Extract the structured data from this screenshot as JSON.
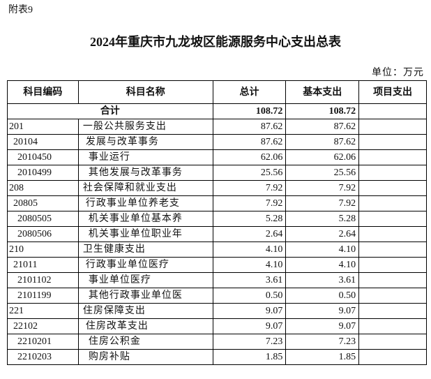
{
  "header": {
    "note": "附表9",
    "title": "2024年重庆市九龙坡区能源服务中心支出总表",
    "unit": "单位：万元"
  },
  "table": {
    "columns": [
      "科目编码",
      "科目名称",
      "总计",
      "基本支出",
      "项目支出"
    ],
    "total": {
      "label": "合计",
      "values": [
        "108.72",
        "108.72"
      ]
    },
    "rows": [
      [
        "201",
        "一般公共服务支出",
        "87.62",
        "87.62"
      ],
      [
        "20104",
        "发展与改革事务",
        "87.62",
        "87.62"
      ],
      [
        "2010450",
        "事业运行",
        "62.06",
        "62.06"
      ],
      [
        "2010499",
        "其他发展与改革事务",
        "25.56",
        "25.56"
      ],
      [
        "208",
        "社会保障和就业支出",
        "7.92",
        "7.92"
      ],
      [
        "20805",
        "行政事业单位养老支",
        "7.92",
        "7.92"
      ],
      [
        "2080505",
        "机关事业单位基本养",
        "5.28",
        "5.28"
      ],
      [
        "2080506",
        "机关事业单位职业年",
        "2.64",
        "2.64"
      ],
      [
        "210",
        "卫生健康支出",
        "4.10",
        "4.10"
      ],
      [
        "21011",
        "行政事业单位医疗",
        "4.10",
        "4.10"
      ],
      [
        "2101102",
        "事业单位医疗",
        "3.61",
        "3.61"
      ],
      [
        "2101199",
        "其他行政事业单位医",
        "0.50",
        "0.50"
      ],
      [
        "221",
        "住房保障支出",
        "9.07",
        "9.07"
      ],
      [
        "22102",
        "住房改革支出",
        "9.07",
        "9.07"
      ],
      [
        "2210201",
        "住房公积金",
        "7.23",
        "7.23"
      ],
      [
        "2210203",
        "购房补贴",
        "1.85",
        "1.85"
      ]
    ]
  }
}
